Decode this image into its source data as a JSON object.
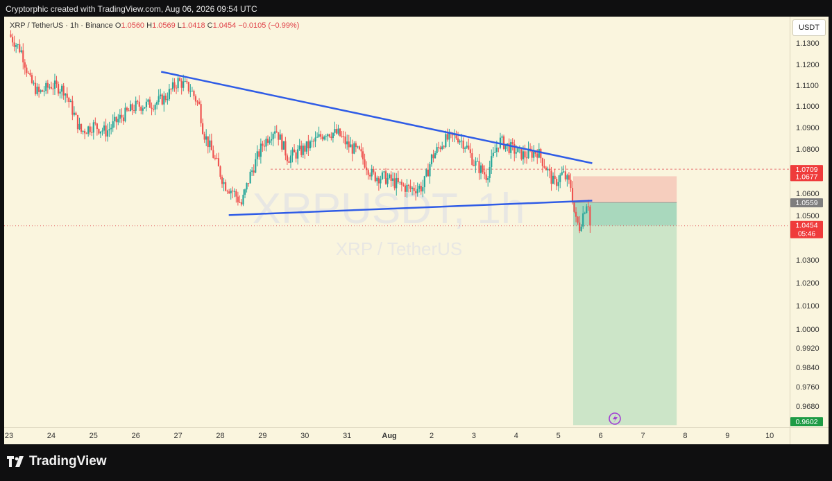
{
  "caption": "Cryptorphic created with TradingView.com, Aug 06, 2026 09:54 UTC",
  "legend": {
    "pair": "XRP / TetherUS · 1h · Binance",
    "o_label": "O",
    "o": "1.0560",
    "h_label": "H",
    "h": "1.0569",
    "l_label": "L",
    "l": "1.0418",
    "c_label": "C",
    "c": "1.0454",
    "change": "−0.0105 (−0.99%)"
  },
  "currency_button": "USDT",
  "watermark": {
    "symbol": "XRPUSDT, 1h",
    "name": "XRP / TetherUS"
  },
  "logo_text": "TradingView",
  "colors": {
    "up": "#26a69a",
    "down": "#ef5350",
    "trendline": "#2f5ce6",
    "stop_zone": "#f4c7b9",
    "target_zone": "#c7e3c5",
    "entry_zone": "#a9d8bd",
    "background": "#faf5de"
  },
  "chart_data": {
    "type": "candlestick",
    "symbol": "XRP / TetherUS",
    "interval": "1h",
    "exchange": "Binance",
    "y_ticks": [
      "1.1300",
      "1.1200",
      "1.1100",
      "1.1000",
      "1.0900",
      "1.0800",
      "1.0600",
      "1.0500",
      "1.0300",
      "1.0200",
      "1.0100",
      "1.0000",
      "0.9920",
      "0.9840",
      "0.9760",
      "0.9680"
    ],
    "x_ticks": [
      "23",
      "24",
      "25",
      "26",
      "27",
      "28",
      "29",
      "30",
      "31",
      "Aug",
      "2",
      "3",
      "4",
      "5",
      "6",
      "7",
      "8",
      "9",
      "10"
    ],
    "price_path": [
      {
        "day": 23.0,
        "price": 1.134
      },
      {
        "day": 23.3,
        "price": 1.126
      },
      {
        "day": 23.5,
        "price": 1.112
      },
      {
        "day": 23.7,
        "price": 1.106
      },
      {
        "day": 24.0,
        "price": 1.11
      },
      {
        "day": 24.3,
        "price": 1.108
      },
      {
        "day": 24.5,
        "price": 1.098
      },
      {
        "day": 24.7,
        "price": 1.088
      },
      {
        "day": 25.0,
        "price": 1.091
      },
      {
        "day": 25.3,
        "price": 1.088
      },
      {
        "day": 25.6,
        "price": 1.094
      },
      {
        "day": 26.0,
        "price": 1.1
      },
      {
        "day": 26.4,
        "price": 1.101
      },
      {
        "day": 26.7,
        "price": 1.104
      },
      {
        "day": 27.0,
        "price": 1.112
      },
      {
        "day": 27.3,
        "price": 1.108
      },
      {
        "day": 27.5,
        "price": 1.1
      },
      {
        "day": 27.6,
        "price": 1.088
      },
      {
        "day": 27.9,
        "price": 1.074
      },
      {
        "day": 28.1,
        "price": 1.064
      },
      {
        "day": 28.3,
        "price": 1.061
      },
      {
        "day": 28.5,
        "price": 1.055
      },
      {
        "day": 28.7,
        "price": 1.068
      },
      {
        "day": 29.0,
        "price": 1.082
      },
      {
        "day": 29.3,
        "price": 1.09
      },
      {
        "day": 29.6,
        "price": 1.076
      },
      {
        "day": 29.9,
        "price": 1.079
      },
      {
        "day": 30.2,
        "price": 1.083
      },
      {
        "day": 30.5,
        "price": 1.088
      },
      {
        "day": 30.8,
        "price": 1.087
      },
      {
        "day": 31.0,
        "price": 1.082
      },
      {
        "day": 31.3,
        "price": 1.078
      },
      {
        "day": 31.6,
        "price": 1.068
      },
      {
        "day": 31.9,
        "price": 1.067
      },
      {
        "day": 32.2,
        "price": 1.064
      },
      {
        "day": 32.5,
        "price": 1.062
      },
      {
        "day": 32.8,
        "price": 1.063
      },
      {
        "day": 33.0,
        "price": 1.076
      },
      {
        "day": 33.3,
        "price": 1.084
      },
      {
        "day": 33.6,
        "price": 1.086
      },
      {
        "day": 33.8,
        "price": 1.082
      },
      {
        "day": 34.0,
        "price": 1.074
      },
      {
        "day": 34.3,
        "price": 1.068
      },
      {
        "day": 34.6,
        "price": 1.084
      },
      {
        "day": 34.9,
        "price": 1.08
      },
      {
        "day": 35.2,
        "price": 1.077
      },
      {
        "day": 35.5,
        "price": 1.079
      },
      {
        "day": 35.7,
        "price": 1.072
      },
      {
        "day": 35.9,
        "price": 1.064
      },
      {
        "day": 36.1,
        "price": 1.069
      },
      {
        "day": 36.3,
        "price": 1.063
      },
      {
        "day": 36.4,
        "price": 1.048
      },
      {
        "day": 36.5,
        "price": 1.045
      },
      {
        "day": 36.6,
        "price": 1.052
      },
      {
        "day": 36.7,
        "price": 1.058
      },
      {
        "day": 36.75,
        "price": 1.0454
      }
    ],
    "price_labels": {
      "upper": "1.0709",
      "stop": "1.0677",
      "entry": "1.0559",
      "last": "1.0454",
      "countdown": "05:46",
      "target": "0.9602"
    },
    "descending_resistance": {
      "from": {
        "day": 26.6,
        "price": 1.1165
      },
      "to": {
        "day": 36.8,
        "price": 1.0736
      }
    },
    "support_line": {
      "from": {
        "day": 28.2,
        "price": 1.0502
      },
      "to": {
        "day": 36.8,
        "price": 1.0567
      }
    },
    "short_position": {
      "entry": 1.0559,
      "stop": 1.0677,
      "target": 0.9602,
      "start_day": 36.35,
      "end_day": 38.8
    },
    "upper_level_line": 1.0709,
    "last_price_line": 1.0454
  }
}
